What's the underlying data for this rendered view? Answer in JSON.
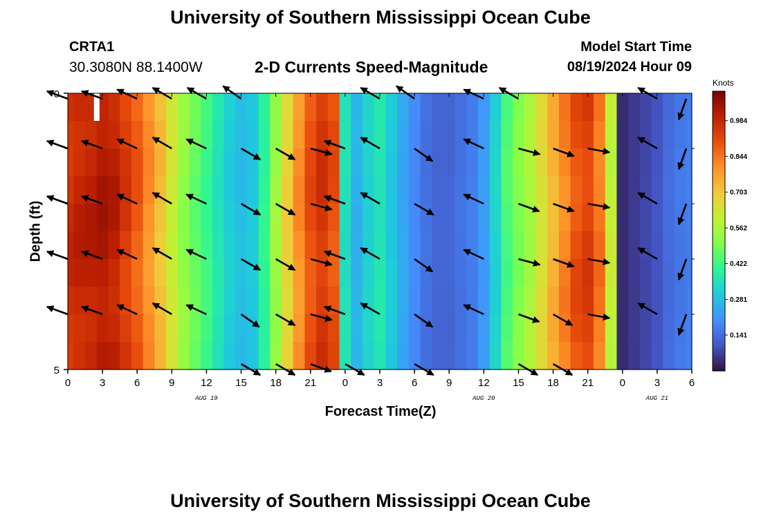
{
  "header": {
    "title": "University of Southern Mississippi Ocean Cube",
    "footer_title": "University of Southern Mississippi Ocean Cube",
    "station": "CRTA1",
    "coords": "30.3080N  88.1400W",
    "subtitle": "2-D Currents Speed-Magnitude",
    "model_start_label": "Model Start Time",
    "model_start_value": "08/19/2024 Hour 09"
  },
  "colors": {
    "arrow": "#000000",
    "colormap": [
      "#30123b",
      "#4454c4",
      "#4490fe",
      "#1fc9dd",
      "#2af597",
      "#7ffe4c",
      "#c3f134",
      "#f1ca3a",
      "#fe922a",
      "#ea4f0d",
      "#be2102",
      "#7a0403"
    ]
  },
  "chart_data": {
    "type": "heatmap",
    "title": "2-D Currents Speed-Magnitude",
    "xlabel": "Forecast Time(Z)",
    "ylabel": "Depth (ft)",
    "x_ticks": [
      "0",
      "3",
      "6",
      "9",
      "12",
      "15",
      "18",
      "21",
      "0",
      "3",
      "6",
      "9",
      "12",
      "15",
      "18",
      "21",
      "0",
      "3",
      "6"
    ],
    "x_hours": [
      0,
      3,
      6,
      9,
      12,
      15,
      18,
      21,
      24,
      27,
      30,
      33,
      36,
      39,
      42,
      45,
      48,
      51,
      54
    ],
    "x_range_hours": [
      0,
      54
    ],
    "day_labels": [
      {
        "label": "AUG 19",
        "hour": 12
      },
      {
        "label": "AUG 20",
        "hour": 36
      },
      {
        "label": "AUG 21",
        "hour": 51
      }
    ],
    "y_ticks": [
      "0",
      "5"
    ],
    "ylim": [
      0,
      5
    ],
    "colorbar": {
      "label": "Knots",
      "ticks": [
        "0.984",
        "0.844",
        "0.703",
        "0.562",
        "0.422",
        "0.281",
        "0.141"
      ],
      "tick_values": [
        0.984,
        0.844,
        0.703,
        0.562,
        0.422,
        0.281,
        0.141
      ],
      "range": [
        0,
        1.1
      ]
    },
    "speed_knots_by_hour": [
      0.97,
      0.99,
      1.0,
      1.02,
      1.0,
      0.94,
      0.88,
      0.8,
      0.72,
      0.62,
      0.53,
      0.47,
      0.42,
      0.36,
      0.31,
      0.28,
      0.3,
      0.4,
      0.54,
      0.68,
      0.8,
      0.9,
      0.95,
      0.9,
      0.35,
      0.26,
      0.32,
      0.36,
      0.3,
      0.24,
      0.19,
      0.15,
      0.13,
      0.13,
      0.15,
      0.17,
      0.22,
      0.32,
      0.44,
      0.5,
      0.56,
      0.65,
      0.74,
      0.82,
      0.9,
      0.93,
      0.84,
      0.6,
      0.04,
      0.06,
      0.08,
      0.1,
      0.14,
      0.16,
      0.17
    ],
    "depth_layers": 10,
    "gaps": [
      {
        "hour": 2.5,
        "depth_from": 0,
        "depth_to": 0.5
      }
    ],
    "vector_depths": [
      0.1,
      1.0,
      2.0,
      3.0,
      4.0,
      4.9
    ],
    "vector_hours": [
      0,
      3,
      6,
      9,
      12,
      15,
      18,
      21,
      24,
      27,
      30,
      33,
      36,
      39,
      42,
      45,
      48,
      51,
      54
    ],
    "vectors": [
      {
        "hour": 0,
        "dir_deg": 160,
        "depth_dirs": [
          160,
          160,
          160,
          160,
          160,
          null
        ]
      },
      {
        "hour": 3,
        "dir_deg": 160,
        "depth_dirs": [
          160,
          160,
          160,
          160,
          160,
          null
        ]
      },
      {
        "hour": 6,
        "dir_deg": 155,
        "depth_dirs": [
          155,
          155,
          155,
          155,
          155,
          null
        ]
      },
      {
        "hour": 9,
        "dir_deg": 150,
        "depth_dirs": [
          150,
          150,
          150,
          150,
          150,
          null
        ]
      },
      {
        "hour": 12,
        "dir_deg": 150,
        "depth_dirs": [
          150,
          155,
          155,
          155,
          155,
          null
        ]
      },
      {
        "hour": 15,
        "dir_deg": 145,
        "depth_dirs": [
          145,
          -30,
          -30,
          -30,
          -35,
          -30
        ]
      },
      {
        "hour": 18,
        "dir_deg": -30,
        "depth_dirs": [
          null,
          -30,
          -30,
          -30,
          -30,
          -30
        ]
      },
      {
        "hour": 21,
        "dir_deg": -15,
        "depth_dirs": [
          null,
          -15,
          -15,
          -15,
          -15,
          -20
        ]
      },
      {
        "hour": 24,
        "dir_deg": 160,
        "depth_dirs": [
          null,
          160,
          160,
          160,
          160,
          -30
        ]
      },
      {
        "hour": 27,
        "dir_deg": 150,
        "depth_dirs": [
          150,
          150,
          150,
          150,
          150,
          null
        ]
      },
      {
        "hour": 30,
        "dir_deg": 145,
        "depth_dirs": [
          145,
          -35,
          -30,
          -35,
          -35,
          -30
        ]
      },
      {
        "hour": 33,
        "dir_deg": null,
        "depth_dirs": [
          null,
          null,
          null,
          null,
          null,
          null
        ]
      },
      {
        "hour": 36,
        "dir_deg": 155,
        "depth_dirs": [
          155,
          155,
          155,
          155,
          155,
          null
        ]
      },
      {
        "hour": 39,
        "dir_deg": 150,
        "depth_dirs": [
          150,
          -15,
          -20,
          -15,
          -20,
          -30
        ]
      },
      {
        "hour": 42,
        "dir_deg": -20,
        "depth_dirs": [
          null,
          -20,
          -20,
          -20,
          -30,
          -30
        ]
      },
      {
        "hour": 45,
        "dir_deg": -10,
        "depth_dirs": [
          null,
          -10,
          -10,
          -10,
          -10,
          null
        ]
      },
      {
        "hour": 48,
        "dir_deg": null,
        "depth_dirs": [
          null,
          null,
          null,
          null,
          null,
          null
        ]
      },
      {
        "hour": 51,
        "dir_deg": 150,
        "depth_dirs": [
          150,
          150,
          150,
          150,
          150,
          null
        ]
      },
      {
        "hour": 54,
        "dir_deg": -110,
        "depth_dirs": [
          -110,
          -110,
          -110,
          -110,
          -110,
          null
        ]
      }
    ]
  }
}
